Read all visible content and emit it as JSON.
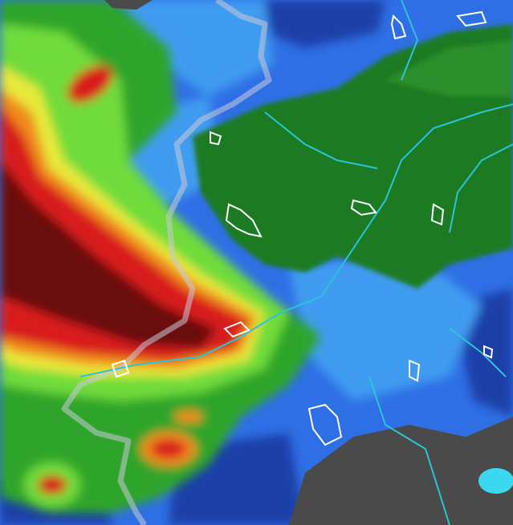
{
  "map": {
    "colors": {
      "ocean_blue": "#2f6fe6",
      "deep_blue": "#1b3fa8",
      "light_blue": "#3f9cf0",
      "green_dark": "#1f7a22",
      "green": "#2fa52a",
      "green_light": "#6fdc3a",
      "yellow": "#e8e83a",
      "orange": "#f08a1e",
      "red": "#d81e1e",
      "dark_red": "#6a0c0c",
      "terrain_gray": "#4a4a4a",
      "river_cyan": "#2bc4d8",
      "outline_white": "#ffffff",
      "border_gray": "#c8c8d8",
      "cyan_patch": "#3cd8f0"
    }
  }
}
